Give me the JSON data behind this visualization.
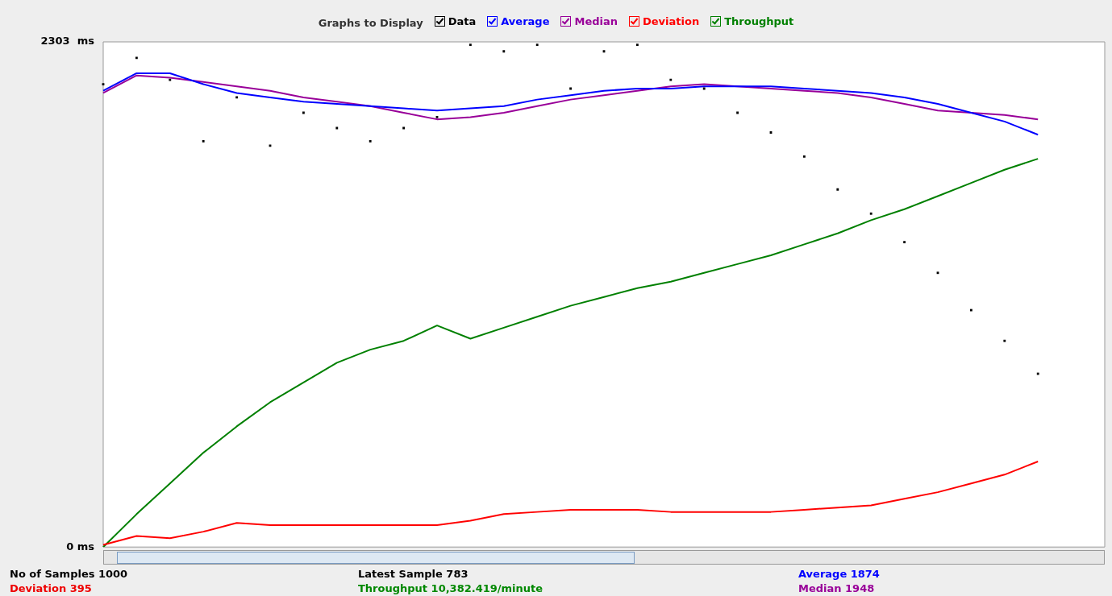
{
  "chart_data": {
    "type": "line",
    "legend_title": "Graphs to Display",
    "categories": [
      null,
      null,
      null,
      null,
      null,
      null,
      null,
      null,
      null,
      null,
      null,
      null,
      null,
      null,
      null,
      null,
      null,
      null,
      null,
      null,
      null,
      null,
      null,
      null,
      null,
      null,
      null,
      null,
      null,
      null,
      null
    ],
    "series": [
      {
        "name": "Data",
        "type": "scatter",
        "marker": "square",
        "color": "#000000",
        "values": [
          2110,
          2230,
          2130,
          1850,
          2050,
          1830,
          1980,
          1910,
          1850,
          1910,
          1960,
          2290,
          2260,
          2290,
          2090,
          2260,
          2290,
          2130,
          2090,
          1980,
          1890,
          1780,
          1630,
          1520,
          1390,
          1250,
          1080,
          940,
          790,
          null,
          null
        ]
      },
      {
        "name": "Average",
        "color": "#0000ff",
        "values": [
          2080,
          2160,
          2160,
          2110,
          2070,
          2050,
          2030,
          2020,
          2010,
          2000,
          1990,
          2000,
          2010,
          2040,
          2060,
          2080,
          2090,
          2090,
          2100,
          2100,
          2100,
          2090,
          2080,
          2070,
          2050,
          2020,
          1980,
          1940,
          1880,
          null,
          null
        ]
      },
      {
        "name": "Median",
        "color": "#990099",
        "values": [
          2070,
          2150,
          2140,
          2120,
          2100,
          2080,
          2050,
          2030,
          2010,
          1980,
          1950,
          1960,
          1980,
          2010,
          2040,
          2060,
          2080,
          2100,
          2110,
          2100,
          2090,
          2080,
          2070,
          2050,
          2020,
          1990,
          1980,
          1970,
          1950,
          null,
          null
        ]
      },
      {
        "name": "Deviation",
        "color": "#ff0000",
        "values": [
          10,
          50,
          40,
          70,
          110,
          100,
          100,
          100,
          100,
          100,
          100,
          120,
          150,
          160,
          170,
          170,
          170,
          160,
          160,
          160,
          160,
          170,
          180,
          190,
          220,
          250,
          290,
          330,
          390,
          null,
          null
        ]
      },
      {
        "name": "Throughput",
        "color": "#008000",
        "values": [
          0,
          150,
          290,
          430,
          550,
          660,
          750,
          840,
          900,
          940,
          1010,
          950,
          1000,
          1050,
          1100,
          1140,
          1180,
          1210,
          1250,
          1290,
          1330,
          1380,
          1430,
          1490,
          1540,
          1600,
          1660,
          1720,
          1770,
          null,
          null
        ]
      }
    ],
    "ylim": [
      0,
      2303
    ],
    "yticks": [
      {
        "value": 0,
        "label": "0 ms"
      },
      {
        "value": 2303,
        "label": "2303  ms"
      }
    ],
    "grid": false,
    "legend": "top",
    "marker": "none",
    "line_style": "solid",
    "tick_labels": "y",
    "annotations": [
      "No of Samples 1000",
      "Latest Sample 783",
      "Average 1874",
      "Deviation 395",
      "Throughput 10,382.419/minute",
      "Median 1948"
    ]
  }
}
